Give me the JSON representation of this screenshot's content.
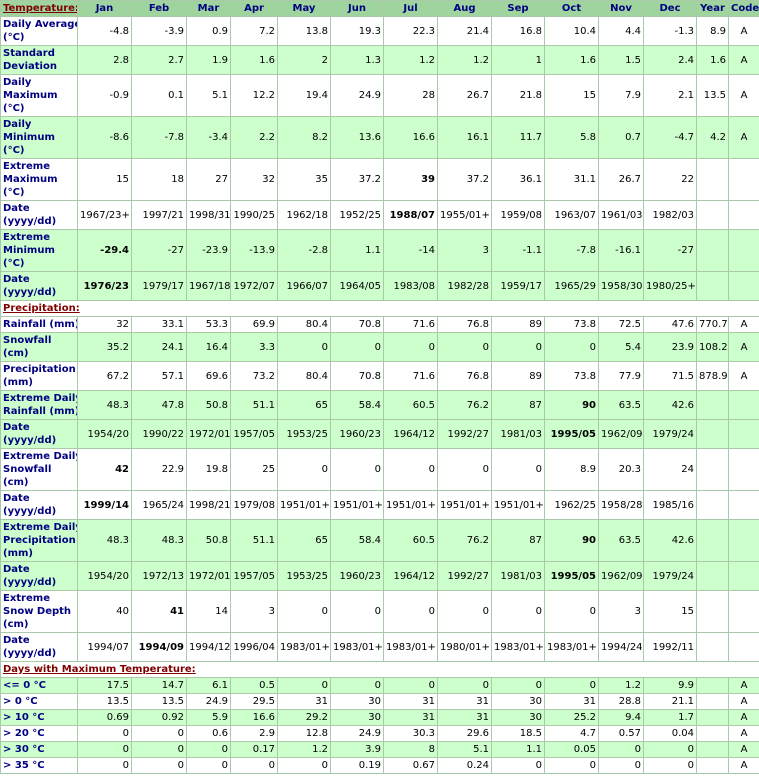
{
  "header": {
    "columns": [
      "Jan",
      "Feb",
      "Mar",
      "Apr",
      "May",
      "Jun",
      "Jul",
      "Aug",
      "Sep",
      "Oct",
      "Nov",
      "Dec",
      "Year",
      "Code"
    ]
  },
  "sections": [
    {
      "title": "Temperature:",
      "rows": [
        {
          "label": [
            "Daily Average",
            "(°C)"
          ],
          "values": [
            "-4.8",
            "-3.9",
            "0.9",
            "7.2",
            "13.8",
            "19.3",
            "22.3",
            "21.4",
            "16.8",
            "10.4",
            "4.4",
            "-1.3"
          ],
          "year": "8.9",
          "code": "A",
          "highlight": false
        },
        {
          "label": [
            "Standard",
            "Deviation"
          ],
          "values": [
            "2.8",
            "2.7",
            "1.9",
            "1.6",
            "2",
            "1.3",
            "1.2",
            "1.2",
            "1",
            "1.6",
            "1.5",
            "2.4"
          ],
          "year": "1.6",
          "code": "A",
          "highlight": true
        },
        {
          "label": [
            "Daily",
            "Maximum",
            "(°C)"
          ],
          "values": [
            "-0.9",
            "0.1",
            "5.1",
            "12.2",
            "19.4",
            "24.9",
            "28",
            "26.7",
            "21.8",
            "15",
            "7.9",
            "2.1"
          ],
          "year": "13.5",
          "code": "A",
          "highlight": false
        },
        {
          "label": [
            "Daily",
            "Minimum",
            "(°C)"
          ],
          "values": [
            "-8.6",
            "-7.8",
            "-3.4",
            "2.2",
            "8.2",
            "13.6",
            "16.6",
            "16.1",
            "11.7",
            "5.8",
            "0.7",
            "-4.7"
          ],
          "year": "4.2",
          "code": "A",
          "highlight": true
        },
        {
          "label": [
            "Extreme",
            "Maximum",
            "(°C)"
          ],
          "values": [
            "15",
            "18",
            "27",
            "32",
            "35",
            "37.2",
            "39",
            "37.2",
            "36.1",
            "31.1",
            "26.7",
            "22"
          ],
          "bold": [
            6
          ],
          "highlight": false
        },
        {
          "label": [
            "Date",
            "(yyyy/dd)"
          ],
          "values": [
            "1967/23+",
            "1997/21",
            "1998/31",
            "1990/25",
            "1962/18",
            "1952/25",
            "1988/07",
            "1955/01+",
            "1959/08",
            "1963/07",
            "1961/03",
            "1982/03"
          ],
          "bold": [
            6
          ],
          "highlight": false
        },
        {
          "label": [
            "Extreme",
            "Minimum",
            "(°C)"
          ],
          "values": [
            "-29.4",
            "-27",
            "-23.9",
            "-13.9",
            "-2.8",
            "1.1",
            "-14",
            "3",
            "-1.1",
            "-7.8",
            "-16.1",
            "-27"
          ],
          "bold": [
            0
          ],
          "highlight": true
        },
        {
          "label": [
            "Date",
            "(yyyy/dd)"
          ],
          "values": [
            "1976/23",
            "1979/17",
            "1967/18",
            "1972/07",
            "1966/07",
            "1964/05",
            "1983/08",
            "1982/28",
            "1959/17",
            "1965/29",
            "1958/30",
            "1980/25+"
          ],
          "bold": [
            0
          ],
          "highlight": true
        }
      ]
    },
    {
      "title": "Precipitation:",
      "rows": [
        {
          "label": [
            "Rainfall (mm)"
          ],
          "values": [
            "32",
            "33.1",
            "53.3",
            "69.9",
            "80.4",
            "70.8",
            "71.6",
            "76.8",
            "89",
            "73.8",
            "72.5",
            "47.6"
          ],
          "year": "770.7",
          "code": "A",
          "highlight": false
        },
        {
          "label": [
            "Snowfall",
            "(cm)"
          ],
          "values": [
            "35.2",
            "24.1",
            "16.4",
            "3.3",
            "0",
            "0",
            "0",
            "0",
            "0",
            "0",
            "5.4",
            "23.9"
          ],
          "year": "108.2",
          "code": "A",
          "highlight": true
        },
        {
          "label": [
            "Precipitation",
            "(mm)"
          ],
          "values": [
            "67.2",
            "57.1",
            "69.6",
            "73.2",
            "80.4",
            "70.8",
            "71.6",
            "76.8",
            "89",
            "73.8",
            "77.9",
            "71.5"
          ],
          "year": "878.9",
          "code": "A",
          "highlight": false
        },
        {
          "label": [
            "Extreme Daily",
            "Rainfall (mm)"
          ],
          "values": [
            "48.3",
            "47.8",
            "50.8",
            "51.1",
            "65",
            "58.4",
            "60.5",
            "76.2",
            "87",
            "90",
            "63.5",
            "42.6"
          ],
          "bold": [
            9
          ],
          "highlight": true
        },
        {
          "label": [
            "Date",
            "(yyyy/dd)"
          ],
          "values": [
            "1954/20",
            "1990/22",
            "1972/01",
            "1957/05",
            "1953/25",
            "1960/23",
            "1964/12",
            "1992/27",
            "1981/03",
            "1995/05",
            "1962/09",
            "1979/24"
          ],
          "bold": [
            9
          ],
          "highlight": true
        },
        {
          "label": [
            "Extreme Daily",
            "Snowfall",
            "(cm)"
          ],
          "values": [
            "42",
            "22.9",
            "19.8",
            "25",
            "0",
            "0",
            "0",
            "0",
            "0",
            "8.9",
            "20.3",
            "24"
          ],
          "bold": [
            0
          ],
          "highlight": false
        },
        {
          "label": [
            "Date",
            "(yyyy/dd)"
          ],
          "values": [
            "1999/14",
            "1965/24",
            "1998/21",
            "1979/08",
            "1951/01+",
            "1951/01+",
            "1951/01+",
            "1951/01+",
            "1951/01+",
            "1962/25",
            "1958/28",
            "1985/16"
          ],
          "bold": [
            0
          ],
          "highlight": false
        },
        {
          "label": [
            "Extreme Daily",
            "Precipitation",
            "(mm)"
          ],
          "values": [
            "48.3",
            "48.3",
            "50.8",
            "51.1",
            "65",
            "58.4",
            "60.5",
            "76.2",
            "87",
            "90",
            "63.5",
            "42.6"
          ],
          "bold": [
            9
          ],
          "highlight": true
        },
        {
          "label": [
            "Date",
            "(yyyy/dd)"
          ],
          "values": [
            "1954/20",
            "1972/13",
            "1972/01",
            "1957/05",
            "1953/25",
            "1960/23",
            "1964/12",
            "1992/27",
            "1981/03",
            "1995/05",
            "1962/09",
            "1979/24"
          ],
          "bold": [
            9
          ],
          "highlight": true
        },
        {
          "label": [
            "Extreme",
            "Snow Depth",
            "(cm)"
          ],
          "values": [
            "40",
            "41",
            "14",
            "3",
            "0",
            "0",
            "0",
            "0",
            "0",
            "0",
            "3",
            "15"
          ],
          "bold": [
            1
          ],
          "highlight": false
        },
        {
          "label": [
            "Date",
            "(yyyy/dd)"
          ],
          "values": [
            "1994/07",
            "1994/09",
            "1994/12",
            "1996/04",
            "1983/01+",
            "1983/01+",
            "1983/01+",
            "1980/01+",
            "1983/01+",
            "1983/01+",
            "1994/24",
            "1992/11"
          ],
          "bold": [
            1
          ],
          "highlight": false
        }
      ]
    },
    {
      "title": "Days with Maximum Temperature:",
      "rows": [
        {
          "label": [
            "<= 0 °C"
          ],
          "values": [
            "17.5",
            "14.7",
            "6.1",
            "0.5",
            "0",
            "0",
            "0",
            "0",
            "0",
            "0",
            "1.2",
            "9.9"
          ],
          "code": "A",
          "highlight": true
        },
        {
          "label": [
            "> 0 °C"
          ],
          "values": [
            "13.5",
            "13.5",
            "24.9",
            "29.5",
            "31",
            "30",
            "31",
            "31",
            "30",
            "31",
            "28.8",
            "21.1"
          ],
          "code": "A",
          "highlight": false
        },
        {
          "label": [
            "> 10 °C"
          ],
          "values": [
            "0.69",
            "0.92",
            "5.9",
            "16.6",
            "29.2",
            "30",
            "31",
            "31",
            "30",
            "25.2",
            "9.4",
            "1.7"
          ],
          "code": "A",
          "highlight": true
        },
        {
          "label": [
            "> 20 °C"
          ],
          "values": [
            "0",
            "0",
            "0.6",
            "2.9",
            "12.8",
            "24.9",
            "30.3",
            "29.6",
            "18.5",
            "4.7",
            "0.57",
            "0.04"
          ],
          "code": "A",
          "highlight": false
        },
        {
          "label": [
            "> 30 °C"
          ],
          "values": [
            "0",
            "0",
            "0",
            "0.17",
            "1.2",
            "3.9",
            "8",
            "5.1",
            "1.1",
            "0.05",
            "0",
            "0"
          ],
          "code": "A",
          "highlight": true
        },
        {
          "label": [
            "> 35 °C"
          ],
          "values": [
            "0",
            "0",
            "0",
            "0",
            "0",
            "0.19",
            "0.67",
            "0.24",
            "0",
            "0",
            "0",
            "0"
          ],
          "code": "A",
          "highlight": false
        }
      ]
    }
  ]
}
